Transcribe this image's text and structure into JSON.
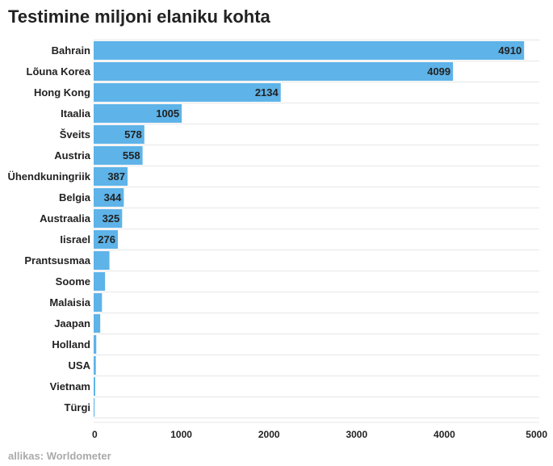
{
  "chart_data": {
    "type": "bar",
    "orientation": "horizontal",
    "title": "Testimine miljoni elaniku kohta",
    "source": "allikas: Worldometer",
    "xlabel": "",
    "ylabel": "",
    "categories": [
      "Bahrain",
      "Lõuna Korea",
      "Hong Kong",
      "Itaalia",
      "Šveits",
      "Austria",
      "Ühendkuningriik",
      "Belgia",
      "Austraalia",
      "Iisrael",
      "Prantsusmaa",
      "Soome",
      "Malaisia",
      "Jaapan",
      "Holland",
      "USA",
      "Vietnam",
      "Türgi"
    ],
    "values": [
      4910,
      4099,
      2134,
      1005,
      578,
      558,
      387,
      344,
      325,
      276,
      180,
      130,
      95,
      75,
      30,
      25,
      18,
      10
    ],
    "data_labels": [
      "4910",
      "4099",
      "2134",
      "1005",
      "578",
      "558",
      "387",
      "344",
      "325",
      "276",
      "",
      "",
      "",
      "",
      "",
      "",
      "",
      ""
    ],
    "xlim": [
      0,
      5000
    ],
    "xticks": [
      "0",
      "1000",
      "2000",
      "3000",
      "4000",
      "5000"
    ],
    "grid": true,
    "colors": {
      "bar": "#5eb3e8",
      "grid": "#e6e6e6",
      "text": "#222222",
      "source": "#aaaaaa"
    }
  }
}
